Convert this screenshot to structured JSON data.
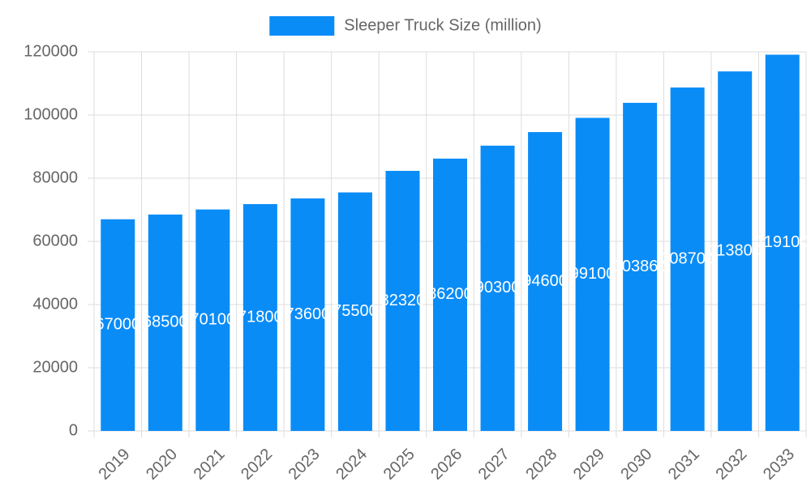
{
  "chart_data": {
    "type": "bar",
    "categories": [
      "2019",
      "2020",
      "2021",
      "2022",
      "2023",
      "2024",
      "2025",
      "2026",
      "2027",
      "2028",
      "2029",
      "2030",
      "2031",
      "2032",
      "2033"
    ],
    "series": [
      {
        "name": "Sleeper Truck Size (million)",
        "color": "#0a8cf7",
        "values": [
          67000,
          68500,
          70100,
          71800,
          73600,
          75500,
          82320,
          86200,
          90300,
          94600,
          99100,
          103860,
          108700,
          113800,
          119100
        ]
      }
    ],
    "ylim": [
      0,
      120000
    ],
    "yticks": [
      0,
      20000,
      40000,
      60000,
      80000,
      100000,
      120000
    ],
    "grid": true
  }
}
